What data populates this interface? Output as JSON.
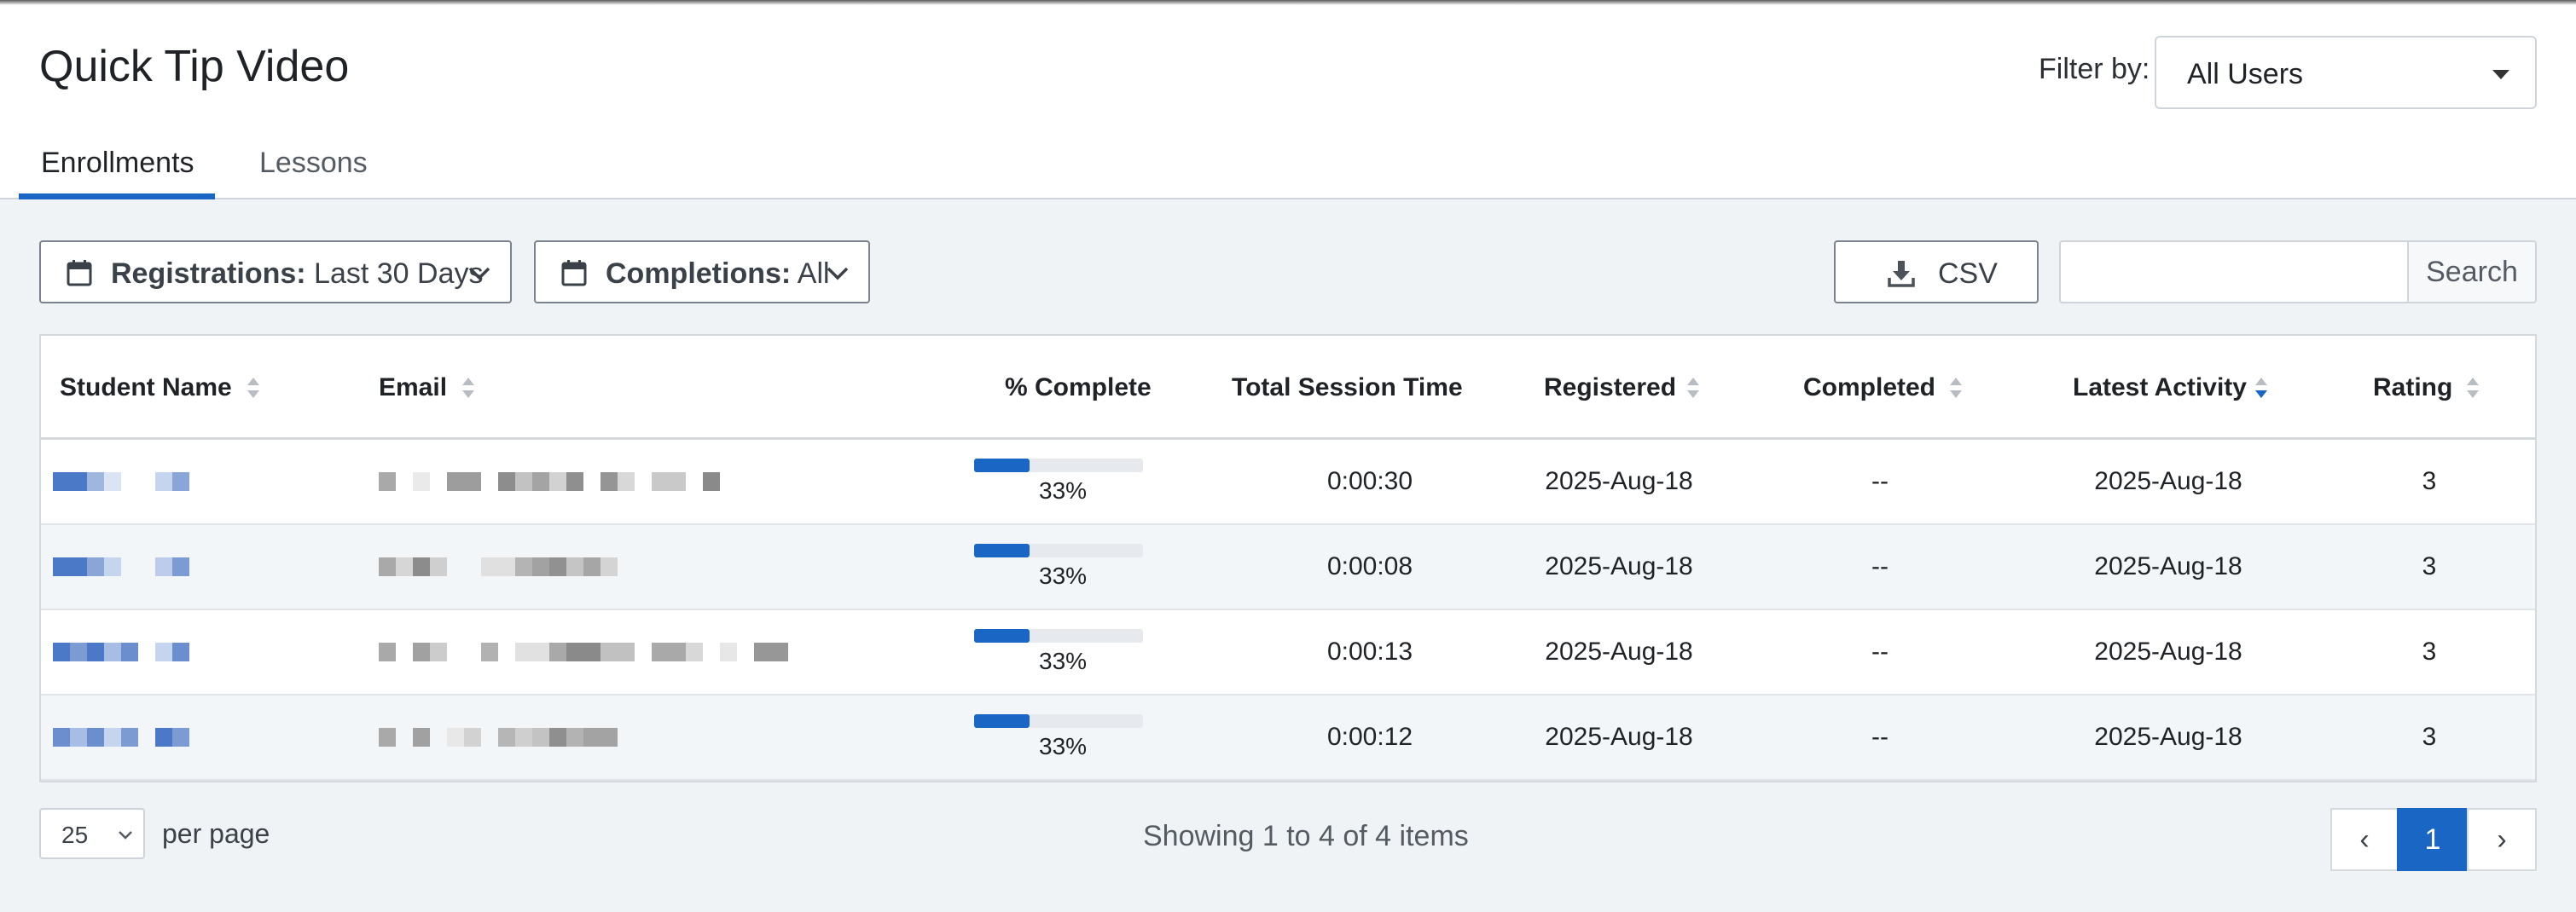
{
  "header": {
    "title": "Quick Tip Video",
    "filter_label": "Filter by:",
    "filter_value": "All Users"
  },
  "tabs": [
    {
      "label": "Enrollments",
      "active": true
    },
    {
      "label": "Lessons",
      "active": false
    }
  ],
  "toolbar": {
    "registrations": {
      "label": "Registrations:",
      "value": "Last 30 Days"
    },
    "completions": {
      "label": "Completions:",
      "value": "All"
    },
    "csv_label": "CSV",
    "search_placeholder": "",
    "search_label": "Search"
  },
  "table": {
    "columns": [
      "Student Name",
      "Email",
      "% Complete",
      "Total Session Time",
      "Registered",
      "Completed",
      "Latest Activity",
      "Rating"
    ],
    "sorted_column": "Latest Activity",
    "rows": [
      {
        "progress": 0.33,
        "percent": "33%",
        "session": "0:00:30",
        "registered": "2025-Aug-18",
        "completed": "--",
        "latest": "2025-Aug-18",
        "rating": "3"
      },
      {
        "progress": 0.33,
        "percent": "33%",
        "session": "0:00:08",
        "registered": "2025-Aug-18",
        "completed": "--",
        "latest": "2025-Aug-18",
        "rating": "3"
      },
      {
        "progress": 0.33,
        "percent": "33%",
        "session": "0:00:13",
        "registered": "2025-Aug-18",
        "completed": "--",
        "latest": "2025-Aug-18",
        "rating": "3"
      },
      {
        "progress": 0.33,
        "percent": "33%",
        "session": "0:00:12",
        "registered": "2025-Aug-18",
        "completed": "--",
        "latest": "2025-Aug-18",
        "rating": "3"
      }
    ]
  },
  "footer": {
    "per_page_value": "25",
    "per_page_label": "per page",
    "showing": "Showing 1 to 4 of 4 items",
    "prev": "‹",
    "page": "1",
    "next": "›"
  },
  "colors": {
    "accent": "#1a66c5",
    "background": "#f0f3f6",
    "progress_track": "#e6eaee"
  }
}
